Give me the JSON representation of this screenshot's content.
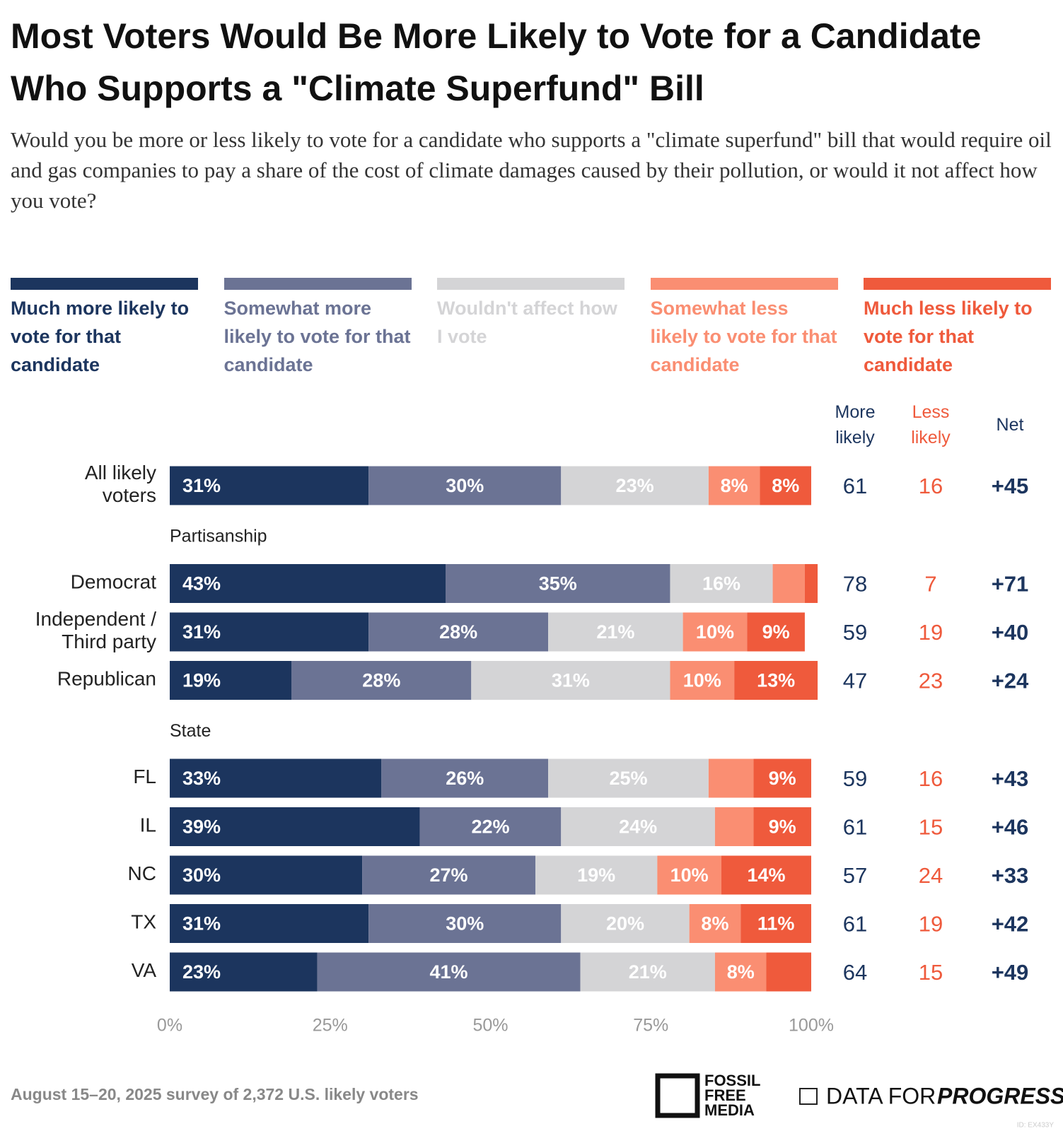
{
  "chart_data": {
    "type": "stacked-bar",
    "title": "Most Voters Would Be More Likely to Vote for a Candidate Who Supports a \"Climate Superfund\" Bill",
    "subtitle": "Would you be more or less likely to vote for a candidate who supports a \"climate superfund\" bill that would require oil and gas companies to pay a share of the cost of climate damages caused by their pollution, or would it not affect how you vote?",
    "categories": [
      "All likely voters",
      "Democrat",
      "Independent / Third party",
      "Republican",
      "FL",
      "IL",
      "NC",
      "TX",
      "VA"
    ],
    "section_headers": [
      {
        "label": "Partisanship",
        "before": "Democrat"
      },
      {
        "label": "State",
        "before": "FL"
      }
    ],
    "series": [
      {
        "name": "Much more likely to vote for that candidate",
        "color": "#1c355e",
        "label_color": "#ffffff",
        "values": [
          31,
          43,
          31,
          19,
          33,
          39,
          30,
          31,
          23
        ],
        "value_labels": [
          "31%",
          "43%",
          "31%",
          "19%",
          "33%",
          "39%",
          "30%",
          "31%",
          "23%"
        ]
      },
      {
        "name": "Somewhat more likely to vote for that candidate",
        "color": "#6b7394",
        "label_color": "#ffffff",
        "values": [
          30,
          35,
          28,
          28,
          26,
          22,
          27,
          30,
          41
        ],
        "value_labels": [
          "30%",
          "35%",
          "28%",
          "28%",
          "26%",
          "22%",
          "27%",
          "30%",
          "41%"
        ]
      },
      {
        "name": "Wouldn't affect how I vote",
        "color": "#d4d4d6",
        "label_color": "#ffffff",
        "values": [
          23,
          16,
          21,
          31,
          25,
          24,
          19,
          20,
          21
        ],
        "value_labels": [
          "23%",
          "16%",
          "21%",
          "31%",
          "25%",
          "24%",
          "19%",
          "20%",
          "21%"
        ]
      },
      {
        "name": "Somewhat less likely to vote for that candidate",
        "color": "#fa8e72",
        "label_color": "#ffffff",
        "values": [
          8,
          5,
          10,
          10,
          7,
          6,
          10,
          8,
          8
        ],
        "value_labels": [
          "8%",
          null,
          "10%",
          "10%",
          null,
          null,
          "10%",
          "8%",
          "8%"
        ]
      },
      {
        "name": "Much less likely to vote for that candidate",
        "color": "#ef5a3c",
        "label_color": "#ffffff",
        "values": [
          8,
          2,
          9,
          13,
          9,
          9,
          14,
          11,
          7
        ],
        "value_labels": [
          "8%",
          null,
          "9%",
          "13%",
          "9%",
          "9%",
          "14%",
          "11%",
          null
        ]
      }
    ],
    "xlim": [
      0,
      100
    ],
    "xticks": [
      {
        "value": 0,
        "label": "0%"
      },
      {
        "value": 25,
        "label": "25%"
      },
      {
        "value": 50,
        "label": "50%"
      },
      {
        "value": 75,
        "label": "75%"
      },
      {
        "value": 100,
        "label": "100%"
      }
    ],
    "table": {
      "columns": [
        {
          "name": "More likely",
          "color": "#1c355e",
          "bold": false,
          "values": [
            61,
            78,
            59,
            47,
            59,
            61,
            57,
            61,
            64
          ]
        },
        {
          "name": "Less likely",
          "color": "#ef5a3c",
          "bold": false,
          "values": [
            16,
            7,
            19,
            23,
            16,
            15,
            24,
            19,
            15
          ]
        },
        {
          "name": "Net",
          "color": "#1c355e",
          "bold": true,
          "values": [
            45,
            71,
            40,
            24,
            43,
            46,
            33,
            42,
            49
          ],
          "value_labels": [
            "+45",
            "+71",
            "+40",
            "+24",
            "+43",
            "+46",
            "+33",
            "+42",
            "+49"
          ]
        }
      ]
    },
    "footer": {
      "note": "August 15–20, 2025 survey of 2,372 U.S. likely voters",
      "logo_1": "FOSSIL FREE MEDIA",
      "logo_2_regular": "DATA FOR",
      "logo_2_bold": "PROGRESS",
      "id": "ID: EX433Y"
    }
  }
}
